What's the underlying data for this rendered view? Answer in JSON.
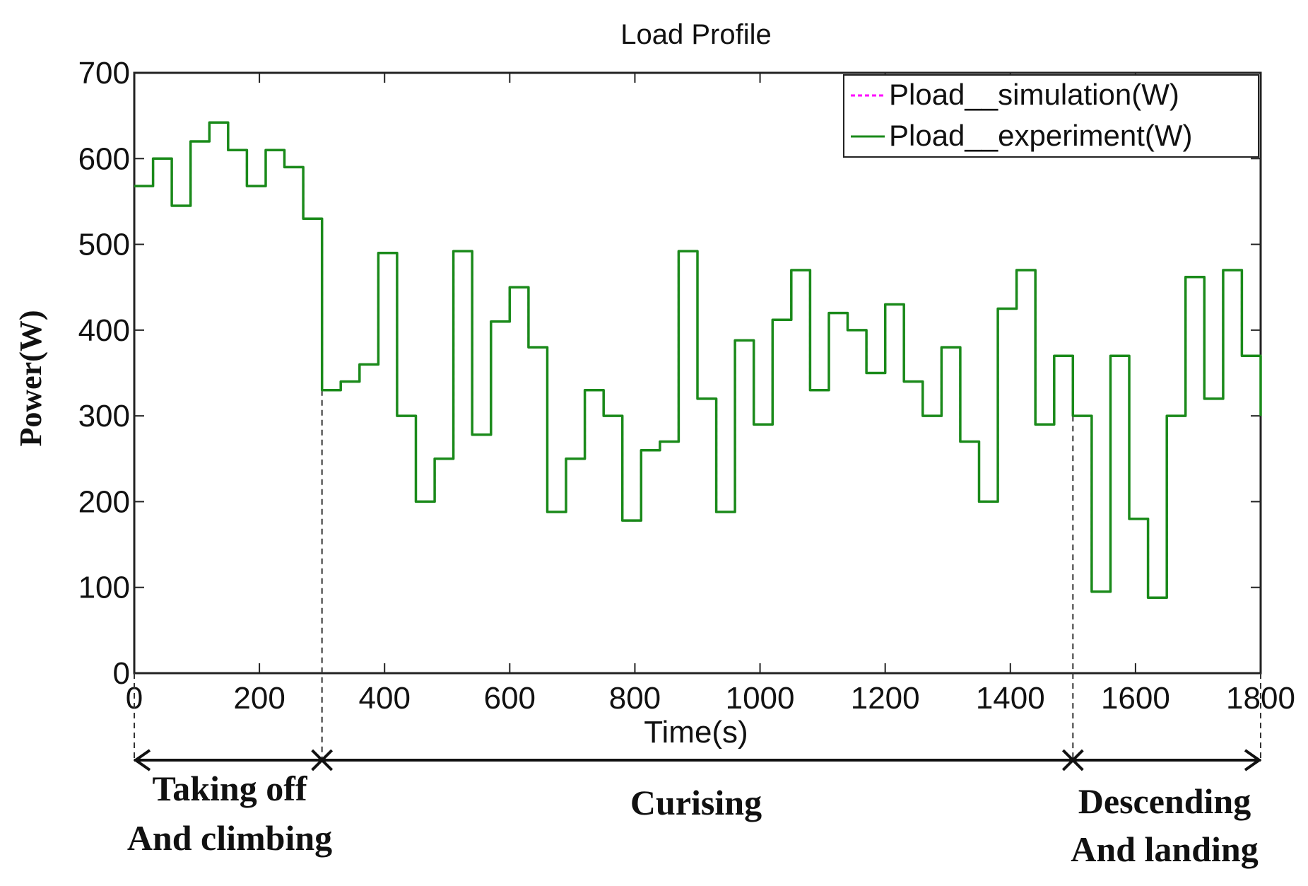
{
  "chart_data": {
    "type": "line",
    "title": "Load Profile",
    "xlabel": "Time(s)",
    "ylabel": "Power(W)",
    "xlim": [
      0,
      1800
    ],
    "ylim": [
      0,
      700
    ],
    "xticks": [
      0,
      200,
      400,
      600,
      800,
      1000,
      1200,
      1400,
      1600,
      1800
    ],
    "yticks": [
      0,
      100,
      200,
      300,
      400,
      500,
      600,
      700
    ],
    "legend": {
      "placement": "top-right"
    },
    "series": [
      {
        "name": "Pload__simulation(W)",
        "color": "#ff00ff",
        "style": "dashed",
        "x": [
          0,
          30,
          30,
          60,
          60,
          90,
          90,
          120,
          120,
          150,
          150,
          180,
          180,
          210,
          210,
          240,
          240,
          270,
          270,
          300,
          300,
          330,
          330,
          360,
          360,
          390,
          390,
          420,
          420,
          450,
          450,
          480,
          480,
          510,
          510,
          540,
          540,
          570,
          570,
          600,
          600,
          630,
          630,
          660,
          660,
          690,
          690,
          720,
          720,
          750,
          750,
          780,
          780,
          810,
          810,
          840,
          840,
          870,
          870,
          900,
          900,
          930,
          930,
          960,
          960,
          990,
          990,
          1020,
          1020,
          1050,
          1050,
          1080,
          1080,
          1110,
          1110,
          1140,
          1140,
          1170,
          1170,
          1200,
          1200,
          1230,
          1230,
          1260,
          1260,
          1290,
          1290,
          1320,
          1320,
          1350,
          1350,
          1380,
          1380,
          1410,
          1410,
          1440,
          1440,
          1470,
          1470,
          1500,
          1500,
          1530,
          1530,
          1560,
          1560,
          1590,
          1590,
          1620,
          1620,
          1650,
          1650,
          1680,
          1680,
          1710,
          1710,
          1740,
          1740,
          1770,
          1770,
          1800,
          1800
        ],
        "y": [
          568,
          568,
          600,
          600,
          545,
          545,
          620,
          620,
          642,
          642,
          610,
          610,
          568,
          568,
          610,
          610,
          590,
          590,
          530,
          530,
          330,
          330,
          340,
          340,
          360,
          360,
          490,
          490,
          300,
          300,
          200,
          200,
          250,
          250,
          492,
          492,
          278,
          278,
          410,
          410,
          450,
          450,
          380,
          380,
          188,
          188,
          250,
          250,
          330,
          330,
          300,
          300,
          178,
          178,
          260,
          260,
          270,
          270,
          492,
          492,
          320,
          320,
          188,
          188,
          388,
          388,
          290,
          290,
          412,
          412,
          470,
          470,
          330,
          330,
          420,
          420,
          400,
          400,
          350,
          350,
          430,
          430,
          340,
          340,
          300,
          300,
          380,
          380,
          270,
          270,
          200,
          200,
          425,
          425,
          470,
          470,
          290,
          290,
          370,
          370,
          300,
          300,
          95,
          95,
          370,
          370,
          180,
          180,
          88,
          88,
          300,
          300,
          462,
          462,
          320,
          320,
          470,
          470,
          370,
          370,
          300
        ]
      },
      {
        "name": "Pload__experiment(W)",
        "color": "#1a8a1a",
        "style": "solid",
        "x": [
          0,
          30,
          30,
          60,
          60,
          90,
          90,
          120,
          120,
          150,
          150,
          180,
          180,
          210,
          210,
          240,
          240,
          270,
          270,
          300,
          300,
          330,
          330,
          360,
          360,
          390,
          390,
          420,
          420,
          450,
          450,
          480,
          480,
          510,
          510,
          540,
          540,
          570,
          570,
          600,
          600,
          630,
          630,
          660,
          660,
          690,
          690,
          720,
          720,
          750,
          750,
          780,
          780,
          810,
          810,
          840,
          840,
          870,
          870,
          900,
          900,
          930,
          930,
          960,
          960,
          990,
          990,
          1020,
          1020,
          1050,
          1050,
          1080,
          1080,
          1110,
          1110,
          1140,
          1140,
          1170,
          1170,
          1200,
          1200,
          1230,
          1230,
          1260,
          1260,
          1290,
          1290,
          1320,
          1320,
          1350,
          1350,
          1380,
          1380,
          1410,
          1410,
          1440,
          1440,
          1470,
          1470,
          1500,
          1500,
          1530,
          1530,
          1560,
          1560,
          1590,
          1590,
          1620,
          1620,
          1650,
          1650,
          1680,
          1680,
          1710,
          1710,
          1740,
          1740,
          1770,
          1770,
          1800,
          1800
        ],
        "y": [
          568,
          568,
          600,
          600,
          545,
          545,
          620,
          620,
          642,
          642,
          610,
          610,
          568,
          568,
          610,
          610,
          590,
          590,
          530,
          530,
          330,
          330,
          340,
          340,
          360,
          360,
          490,
          490,
          300,
          300,
          200,
          200,
          250,
          250,
          492,
          492,
          278,
          278,
          410,
          410,
          450,
          450,
          380,
          380,
          188,
          188,
          250,
          250,
          330,
          330,
          300,
          300,
          178,
          178,
          260,
          260,
          270,
          270,
          492,
          492,
          320,
          320,
          188,
          188,
          388,
          388,
          290,
          290,
          412,
          412,
          470,
          470,
          330,
          330,
          420,
          420,
          400,
          400,
          350,
          350,
          430,
          430,
          340,
          340,
          300,
          300,
          380,
          380,
          270,
          270,
          200,
          200,
          425,
          425,
          470,
          470,
          290,
          290,
          370,
          370,
          300,
          300,
          95,
          95,
          370,
          370,
          180,
          180,
          88,
          88,
          300,
          300,
          462,
          462,
          320,
          320,
          470,
          470,
          370,
          370,
          300
        ]
      }
    ],
    "phase_boundaries": [
      0,
      300,
      1500,
      1800
    ],
    "phases": [
      {
        "label_line1": "Taking off",
        "label_line2": "And climbing",
        "start": 0,
        "end": 300
      },
      {
        "label_line1": "Curising",
        "label_line2": "",
        "start": 300,
        "end": 1500
      },
      {
        "label_line1": "Descending",
        "label_line2": "And landing",
        "start": 1500,
        "end": 1800
      }
    ]
  }
}
